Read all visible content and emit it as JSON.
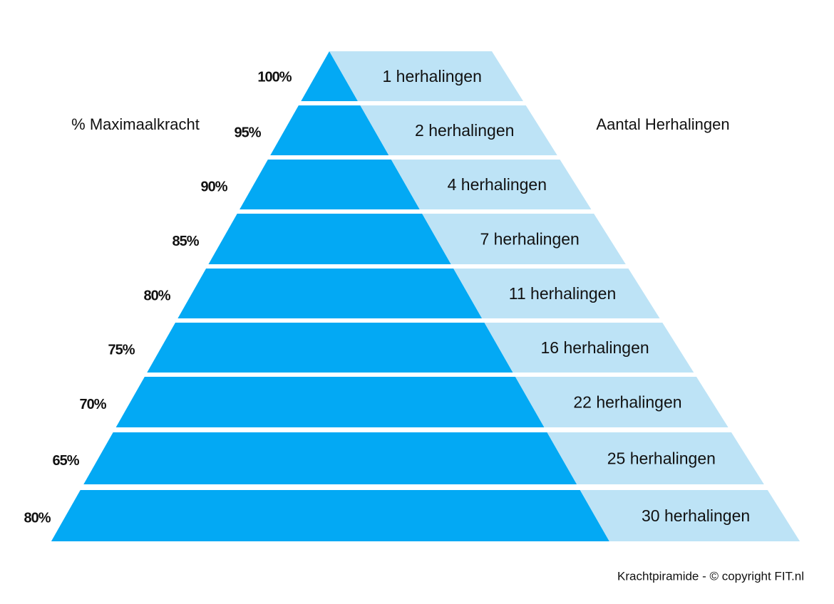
{
  "left_label": "% Maximaalkracht",
  "right_label": "Aantal Herhalingen",
  "levels": [
    {
      "percent": "100%",
      "reps": "1 herhalingen"
    },
    {
      "percent": "95%",
      "reps": "2 herhalingen"
    },
    {
      "percent": "90%",
      "reps": "4 herhalingen"
    },
    {
      "percent": "85%",
      "reps": "7 herhalingen"
    },
    {
      "percent": "80%",
      "reps": "11 herhalingen"
    },
    {
      "percent": "75%",
      "reps": "16 herhalingen"
    },
    {
      "percent": "70%",
      "reps": "22 herhalingen"
    },
    {
      "percent": "65%",
      "reps": "25 herhalingen"
    },
    {
      "percent": "80%",
      "reps": "30 herhalingen"
    }
  ],
  "footer": "Krachtpiramide - © copyright FIT.nl"
}
